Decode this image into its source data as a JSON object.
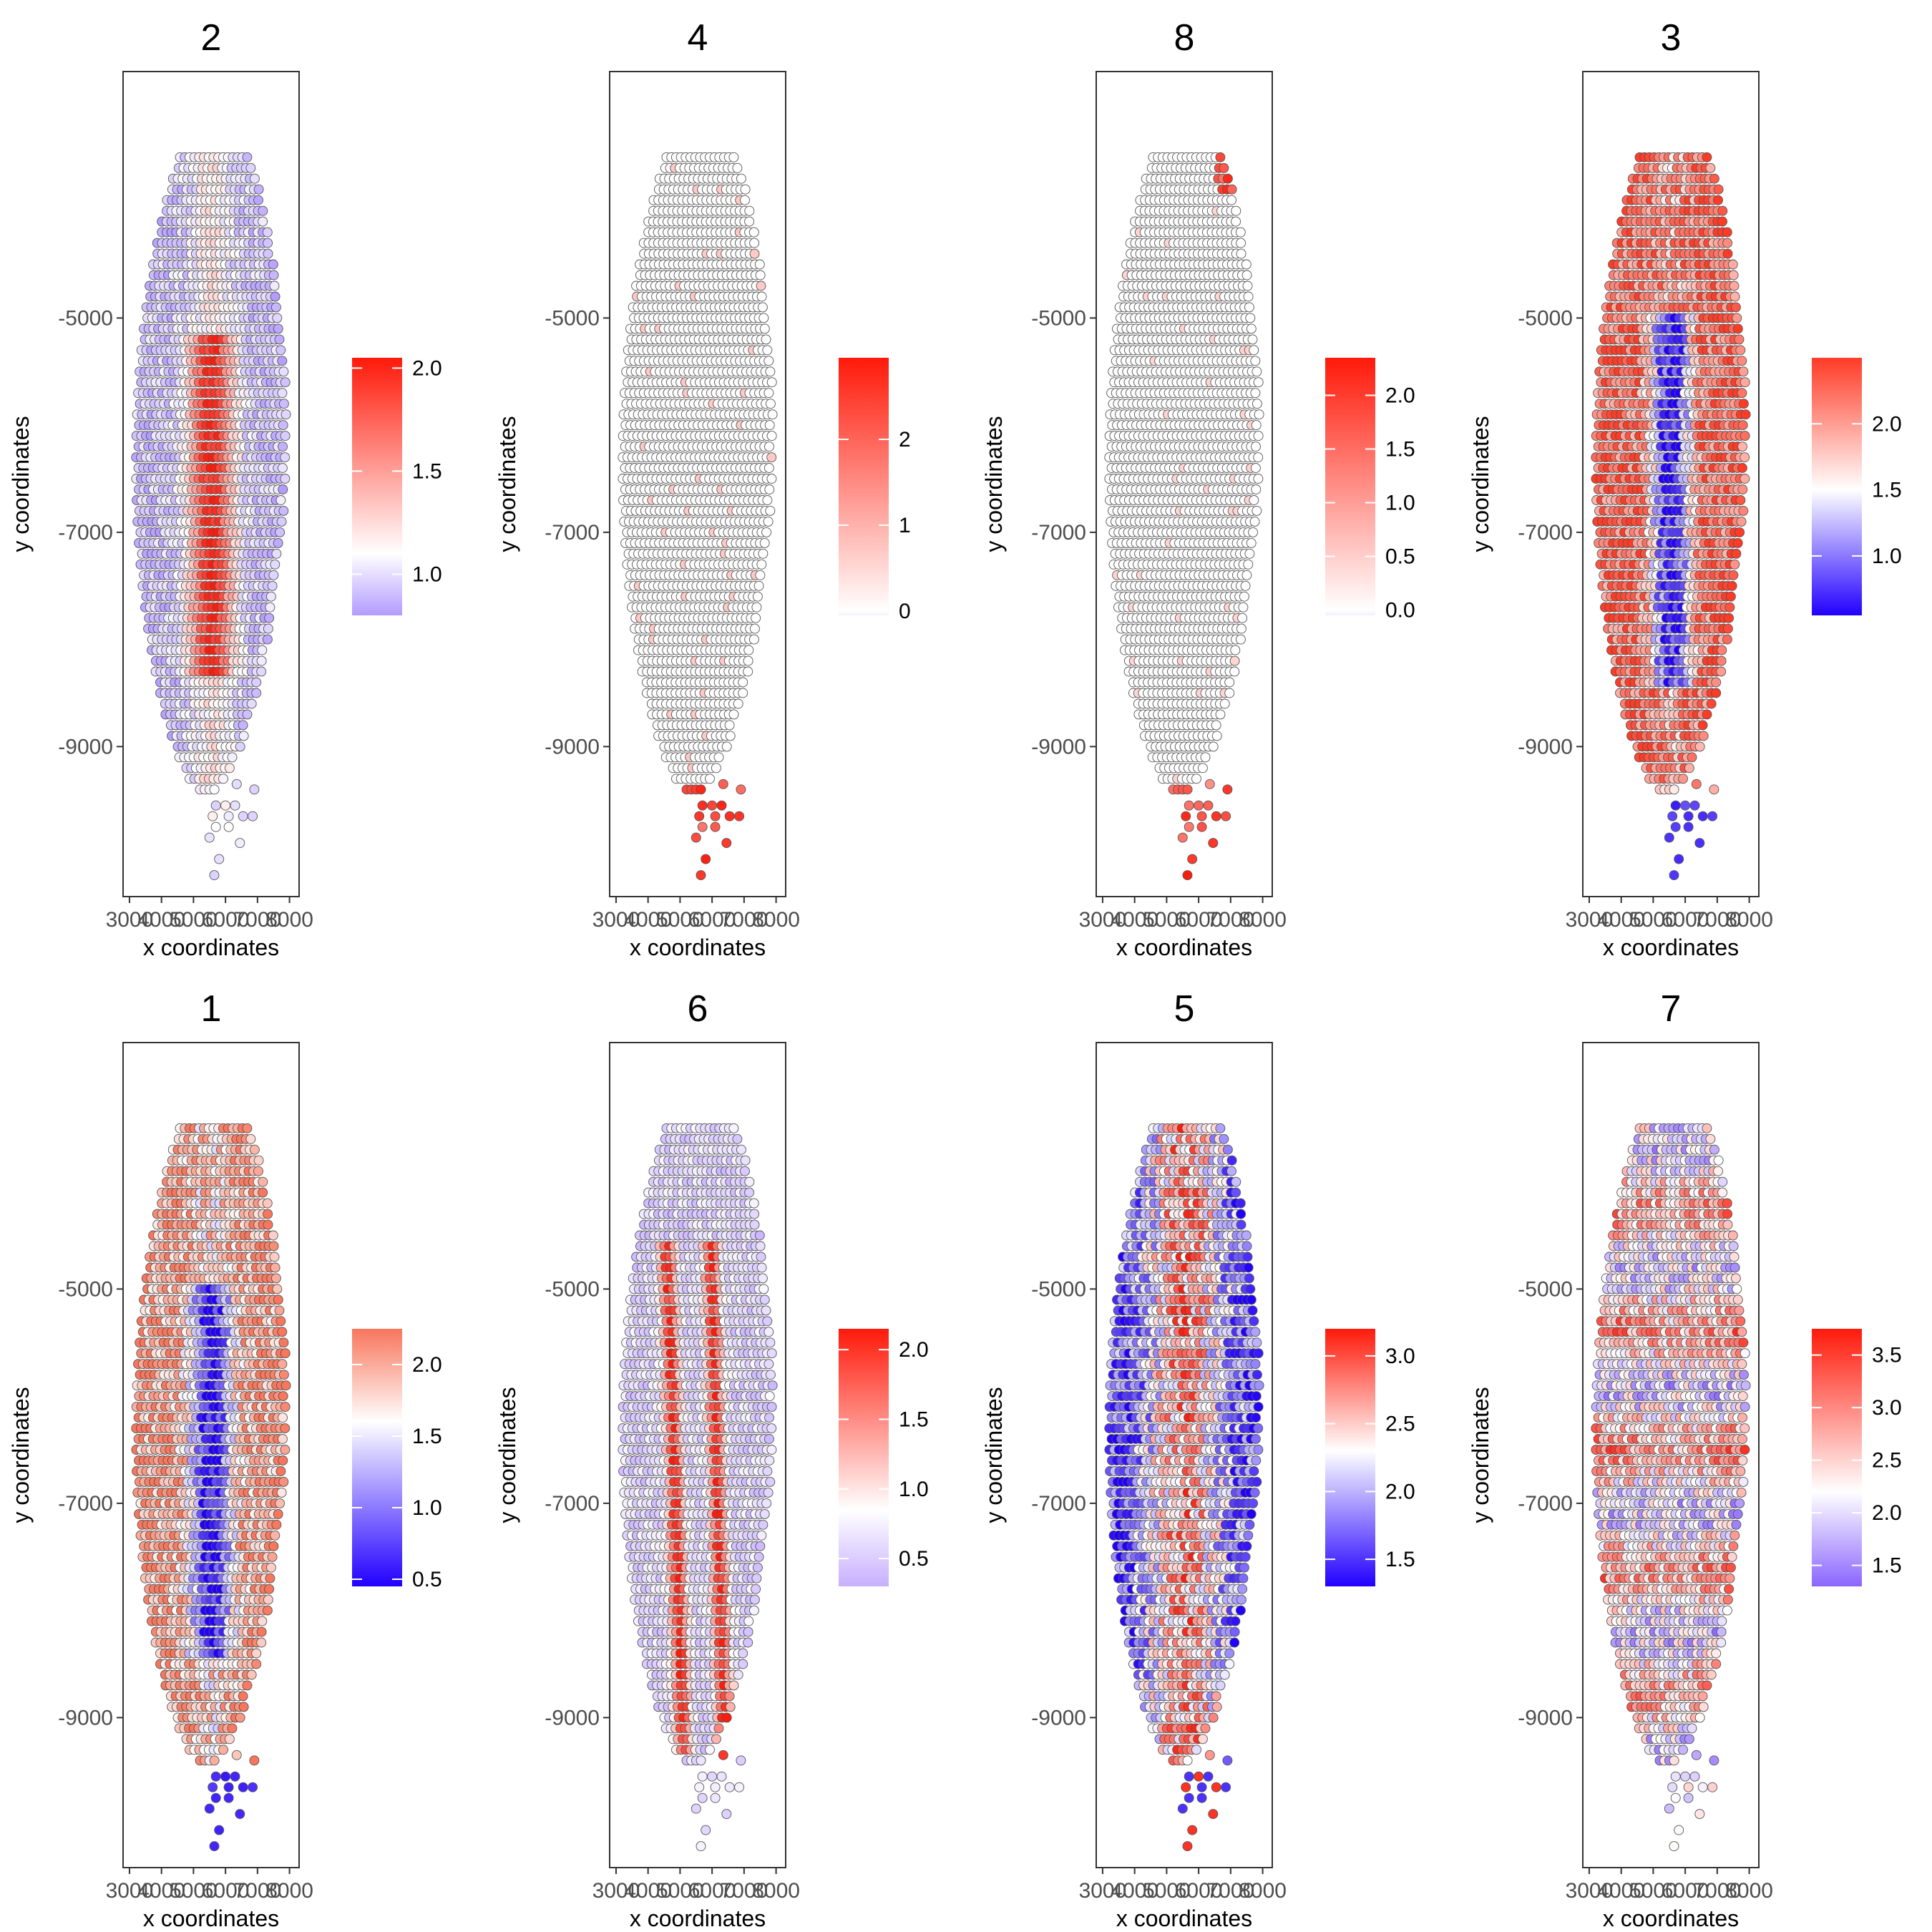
{
  "chart_data": [
    {
      "type": "scatter",
      "title": "2",
      "xlabel": "x coordinates",
      "ylabel": "y coordinates",
      "xlim": [
        2800,
        8300
      ],
      "ylim": [
        -10400,
        -2700
      ],
      "x_ticks": [
        "3000",
        "4000",
        "5000",
        "6000",
        "7000",
        "8000"
      ],
      "y_ticks": [
        "-5000",
        "-7000",
        "-9000"
      ],
      "pattern": "center_high",
      "colorbar": {
        "min": 0.8,
        "max": 2.05,
        "mid": 1.1,
        "low_color": "#b39bff",
        "mid_color": "#ffffff",
        "high_color": "#ff1a0a",
        "ticks": [
          1.0,
          1.5,
          2.0
        ],
        "labels": [
          "1.0",
          "1.5",
          "2.0"
        ]
      }
    },
    {
      "type": "scatter",
      "title": "4",
      "xlabel": "x coordinates",
      "ylabel": "y coordinates",
      "xlim": [
        2800,
        8300
      ],
      "ylim": [
        -10400,
        -2700
      ],
      "x_ticks": [
        "3000",
        "4000",
        "5000",
        "6000",
        "7000",
        "8000"
      ],
      "y_ticks": [
        "-5000",
        "-7000",
        "-9000"
      ],
      "pattern": "bottom_tip",
      "colorbar": {
        "min": -0.05,
        "max": 2.95,
        "mid": 0.0,
        "low_color": "#f4f0ff",
        "mid_color": "#ffffff",
        "high_color": "#ff1a0a",
        "ticks": [
          0,
          1,
          2
        ],
        "labels": [
          "0",
          "1",
          "2"
        ]
      }
    },
    {
      "type": "scatter",
      "title": "8",
      "xlabel": "x coordinates",
      "ylabel": "y coordinates",
      "xlim": [
        2800,
        8300
      ],
      "ylim": [
        -10400,
        -2700
      ],
      "x_ticks": [
        "3000",
        "4000",
        "5000",
        "6000",
        "7000",
        "8000"
      ],
      "y_ticks": [
        "-5000",
        "-7000",
        "-9000"
      ],
      "pattern": "tips",
      "colorbar": {
        "min": -0.05,
        "max": 2.35,
        "mid": 0.0,
        "low_color": "#f4f0ff",
        "mid_color": "#ffffff",
        "high_color": "#ff1a0a",
        "ticks": [
          0.0,
          0.5,
          1.0,
          1.5,
          2.0
        ],
        "labels": [
          "0.0",
          "0.5",
          "1.0",
          "1.5",
          "2.0"
        ]
      }
    },
    {
      "type": "scatter",
      "title": "3",
      "xlabel": "x coordinates",
      "ylabel": "y coordinates",
      "xlim": [
        2800,
        8300
      ],
      "ylim": [
        -10400,
        -2700
      ],
      "x_ticks": [
        "3000",
        "4000",
        "5000",
        "6000",
        "7000",
        "8000"
      ],
      "y_ticks": [
        "-5000",
        "-7000",
        "-9000"
      ],
      "pattern": "center_low",
      "colorbar": {
        "min": 0.55,
        "max": 2.5,
        "mid": 1.5,
        "low_color": "#2200ff",
        "mid_color": "#ffffff",
        "high_color": "#ff3b26",
        "ticks": [
          1.0,
          1.5,
          2.0
        ],
        "labels": [
          "1.0",
          "1.5",
          "2.0"
        ]
      }
    },
    {
      "type": "scatter",
      "title": "1",
      "xlabel": "x coordinates",
      "ylabel": "y coordinates",
      "xlim": [
        2800,
        8300
      ],
      "ylim": [
        -10400,
        -2700
      ],
      "x_ticks": [
        "3000",
        "4000",
        "5000",
        "6000",
        "7000",
        "8000"
      ],
      "y_ticks": [
        "-5000",
        "-7000",
        "-9000"
      ],
      "pattern": "center_low",
      "colorbar": {
        "min": 0.45,
        "max": 2.25,
        "mid": 1.6,
        "low_color": "#2200ff",
        "mid_color": "#ffffff",
        "high_color": "#f8765c",
        "ticks": [
          0.5,
          1.0,
          1.5,
          2.0
        ],
        "labels": [
          "0.5",
          "1.0",
          "1.5",
          "2.0"
        ]
      }
    },
    {
      "type": "scatter",
      "title": "6",
      "xlabel": "x coordinates",
      "ylabel": "y coordinates",
      "xlim": [
        2800,
        8300
      ],
      "ylim": [
        -10400,
        -2700
      ],
      "x_ticks": [
        "3000",
        "4000",
        "5000",
        "6000",
        "7000",
        "8000"
      ],
      "y_ticks": [
        "-5000",
        "-7000",
        "-9000"
      ],
      "pattern": "bands",
      "colorbar": {
        "min": 0.3,
        "max": 2.15,
        "mid": 0.85,
        "low_color": "#c7b0ff",
        "mid_color": "#ffffff",
        "high_color": "#ff1a0a",
        "ticks": [
          0.5,
          1.0,
          1.5,
          2.0
        ],
        "labels": [
          "0.5",
          "1.0",
          "1.5",
          "2.0"
        ]
      }
    },
    {
      "type": "scatter",
      "title": "5",
      "xlabel": "x coordinates",
      "ylabel": "y coordinates",
      "xlim": [
        2800,
        8300
      ],
      "ylim": [
        -10400,
        -2700
      ],
      "x_ticks": [
        "3000",
        "4000",
        "5000",
        "6000",
        "7000",
        "8000"
      ],
      "y_ticks": [
        "-5000",
        "-7000",
        "-9000"
      ],
      "pattern": "center_high_soft",
      "colorbar": {
        "min": 1.3,
        "max": 3.2,
        "mid": 2.3,
        "low_color": "#2200ff",
        "mid_color": "#ffffff",
        "high_color": "#ff1a0a",
        "ticks": [
          1.5,
          2.0,
          2.5,
          3.0
        ],
        "labels": [
          "1.5",
          "2.0",
          "2.5",
          "3.0"
        ]
      }
    },
    {
      "type": "scatter",
      "title": "7",
      "xlabel": "x coordinates",
      "ylabel": "y coordinates",
      "xlim": [
        2800,
        8300
      ],
      "ylim": [
        -10400,
        -2700
      ],
      "x_ticks": [
        "3000",
        "4000",
        "5000",
        "6000",
        "7000",
        "8000"
      ],
      "y_ticks": [
        "-5000",
        "-7000",
        "-9000"
      ],
      "pattern": "mixed",
      "colorbar": {
        "min": 1.3,
        "max": 3.75,
        "mid": 2.2,
        "low_color": "#8b66ff",
        "mid_color": "#ffffff",
        "high_color": "#ff1a0a",
        "ticks": [
          1.5,
          2.0,
          2.5,
          3.0,
          3.5
        ],
        "labels": [
          "1.5",
          "2.0",
          "2.5",
          "3.0",
          "3.5"
        ]
      }
    }
  ]
}
